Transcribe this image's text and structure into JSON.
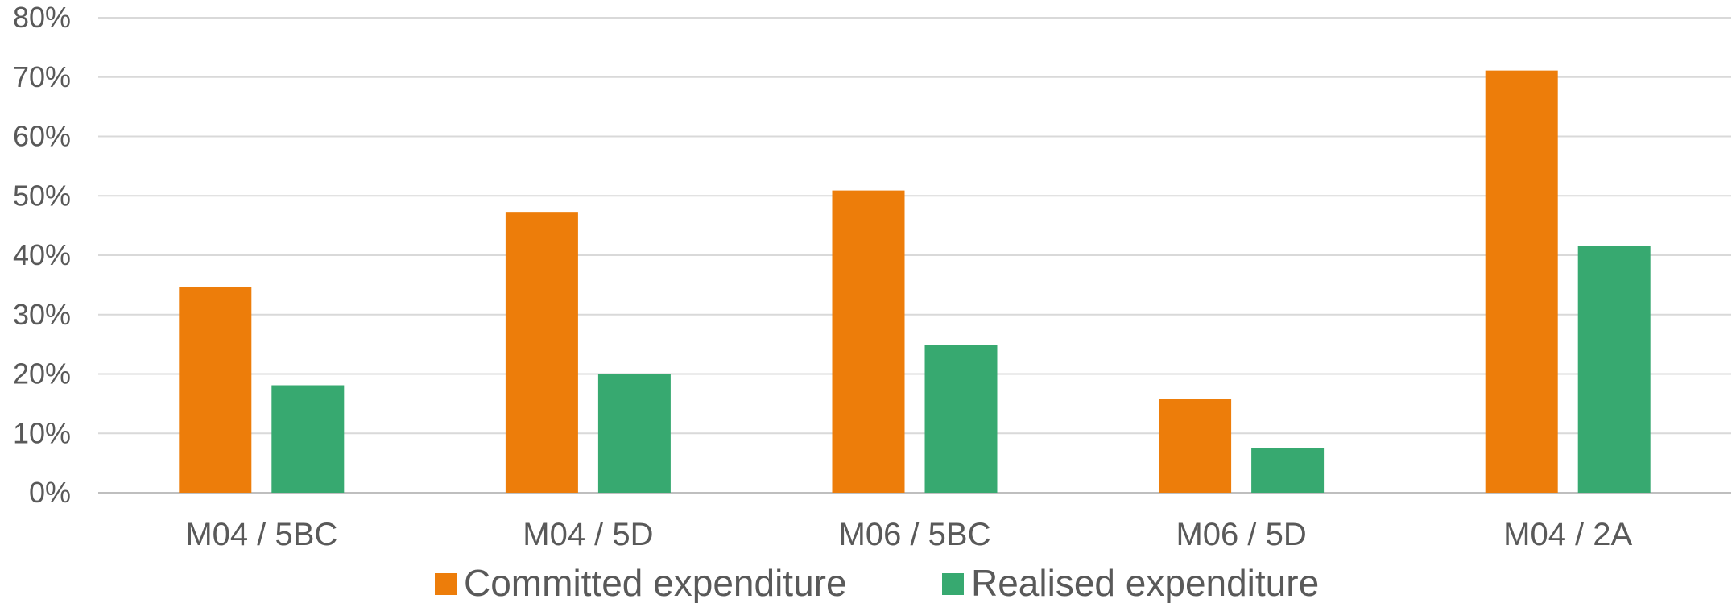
{
  "chart_data": {
    "type": "bar",
    "categories": [
      "M04 / 5BC",
      "M04 / 5D",
      "M06 / 5BC",
      "M06 / 5D",
      "M04 / 2A"
    ],
    "series": [
      {
        "name": "Committed expenditure",
        "color": "#ED7D0A",
        "values": [
          34.7,
          47.3,
          50.9,
          15.8,
          71.1
        ]
      },
      {
        "name": "Realised expenditure",
        "color": "#37A970",
        "values": [
          18.1,
          20.0,
          24.9,
          7.5,
          41.6
        ]
      }
    ],
    "yticks": [
      "0%",
      "10%",
      "20%",
      "30%",
      "40%",
      "50%",
      "60%",
      "70%",
      "80%"
    ],
    "ylim": [
      0,
      80
    ],
    "y_unit": "%",
    "grid": true,
    "legend_position": "bottom"
  }
}
